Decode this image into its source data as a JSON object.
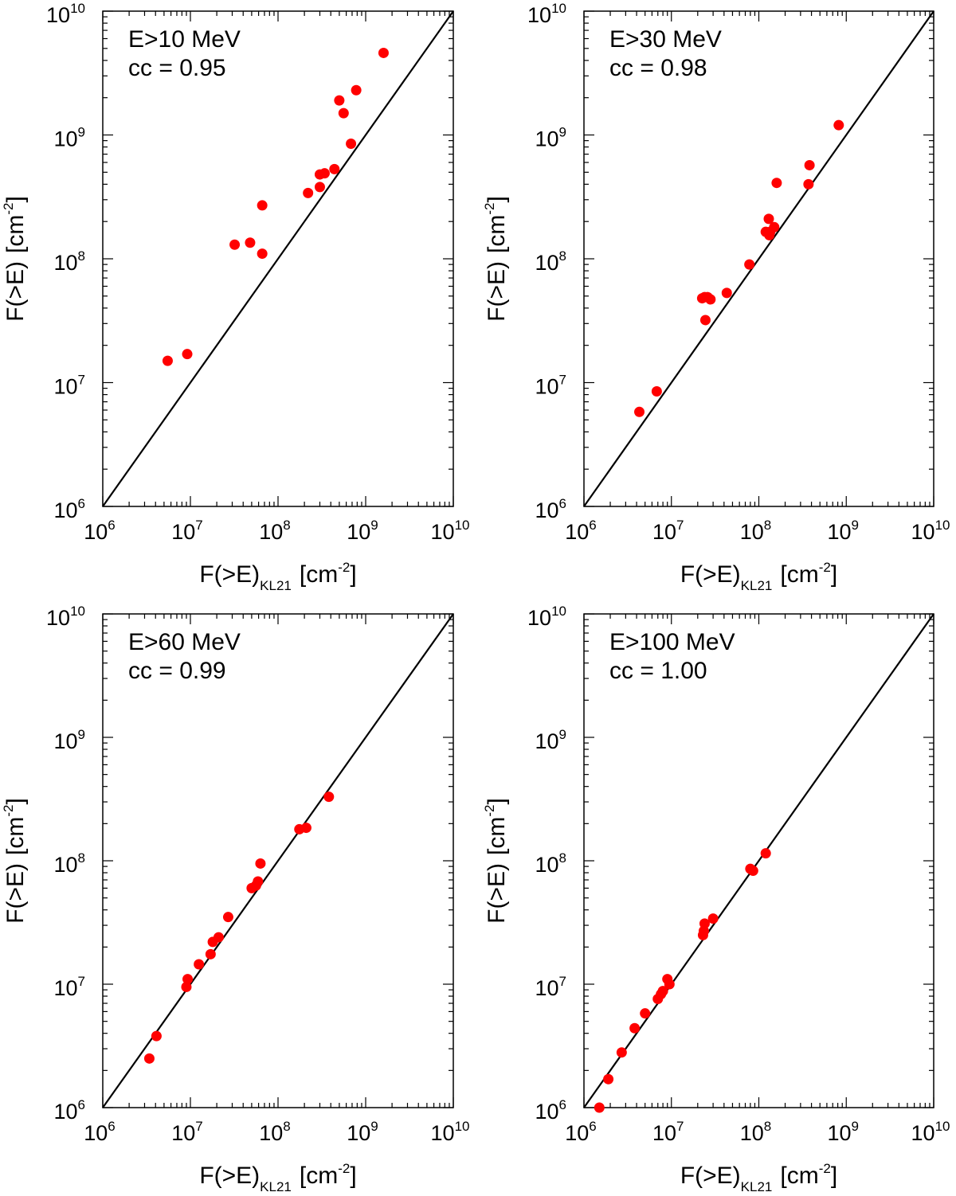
{
  "chart_data": [
    {
      "type": "scatter",
      "scale": "log-log",
      "annotation": "E>10 MeV",
      "cc_label": "cc = 0.95",
      "xlabel": {
        "main": "F(>E)",
        "subscript": "KL21",
        "unit": "[cm",
        "unit_exp": "-2",
        "unit_close": "]"
      },
      "ylabel": {
        "main": "F(>E)",
        "unit": "[cm",
        "unit_exp": "-2",
        "unit_close": "]"
      },
      "xlim": [
        1000000.0,
        10000000000.0
      ],
      "ylim": [
        1000000.0,
        10000000000.0
      ],
      "tick_base": "10",
      "tick_exponents": [
        "6",
        "7",
        "8",
        "9",
        "10"
      ],
      "reference_line": "y = x",
      "marker_color": "#ff0000",
      "x": [
        5500000.0,
        9200000.0,
        32000000.0,
        48000000.0,
        66000000.0,
        66000000.0,
        220000000.0,
        300000000.0,
        300000000.0,
        340000000.0,
        440000000.0,
        500000000.0,
        560000000.0,
        680000000.0,
        780000000.0,
        1600000000.0
      ],
      "y": [
        15000000.0,
        17000000.0,
        130000000.0,
        135000000.0,
        110000000.0,
        270000000.0,
        340000000.0,
        380000000.0,
        480000000.0,
        490000000.0,
        530000000.0,
        1900000000.0,
        1500000000.0,
        850000000.0,
        2300000000.0,
        4600000000.0
      ]
    },
    {
      "type": "scatter",
      "scale": "log-log",
      "annotation": "E>30 MeV",
      "cc_label": "cc = 0.98",
      "xlabel": {
        "main": "F(>E)",
        "subscript": "KL21",
        "unit": "[cm",
        "unit_exp": "-2",
        "unit_close": "]"
      },
      "ylabel": {
        "main": "F(>E)",
        "unit": "[cm",
        "unit_exp": "-2",
        "unit_close": "]"
      },
      "xlim": [
        1000000.0,
        10000000000.0
      ],
      "ylim": [
        1000000.0,
        10000000000.0
      ],
      "tick_base": "10",
      "tick_exponents": [
        "6",
        "7",
        "8",
        "9",
        "10"
      ],
      "reference_line": "y = x",
      "marker_color": "#ff0000",
      "x": [
        4300000.0,
        6800000.0,
        22500000.0,
        24000000.0,
        24500000.0,
        26000000.0,
        28000000.0,
        43000000.0,
        78000000.0,
        120000000.0,
        130000000.0,
        132000000.0,
        135000000.0,
        150000000.0,
        160000000.0,
        370000000.0,
        380000000.0,
        820000000.0
      ],
      "y": [
        5800000.0,
        8500000.0,
        48000000.0,
        49000000.0,
        32000000.0,
        49000000.0,
        47000000.0,
        53000000.0,
        90000000.0,
        165000000.0,
        210000000.0,
        155000000.0,
        165000000.0,
        180000000.0,
        410000000.0,
        400000000.0,
        570000000.0,
        1200000000.0
      ]
    },
    {
      "type": "scatter",
      "scale": "log-log",
      "annotation": "E>60 MeV",
      "cc_label": "cc = 0.99",
      "xlabel": {
        "main": "F(>E)",
        "subscript": "KL21",
        "unit": "[cm",
        "unit_exp": "-2",
        "unit_close": "]"
      },
      "ylabel": {
        "main": "F(>E)",
        "unit": "[cm",
        "unit_exp": "-2",
        "unit_close": "]"
      },
      "xlim": [
        1000000.0,
        10000000000.0
      ],
      "ylim": [
        1000000.0,
        10000000000.0
      ],
      "tick_base": "10",
      "tick_exponents": [
        "6",
        "7",
        "8",
        "9",
        "10"
      ],
      "reference_line": "y = x",
      "marker_color": "#ff0000",
      "x": [
        3400000.0,
        4100000.0,
        9000000.0,
        9300000.0,
        12500000.0,
        17000000.0,
        18000000.0,
        21000000.0,
        27000000.0,
        50000000.0,
        56000000.0,
        59000000.0,
        63000000.0,
        175000000.0,
        210000000.0,
        380000000.0
      ],
      "y": [
        2500000.0,
        3800000.0,
        9500000.0,
        11000000.0,
        14500000.0,
        17500000.0,
        22000000.0,
        24000000.0,
        35000000.0,
        60000000.0,
        63000000.0,
        68000000.0,
        95000000.0,
        180000000.0,
        185000000.0,
        330000000.0
      ]
    },
    {
      "type": "scatter",
      "scale": "log-log",
      "annotation": "E>100 MeV",
      "cc_label": "cc = 1.00",
      "xlabel": {
        "main": "F(>E)",
        "subscript": "KL21",
        "unit": "[cm",
        "unit_exp": "-2",
        "unit_close": "]"
      },
      "ylabel": {
        "main": "F(>E)",
        "unit": "[cm",
        "unit_exp": "-2",
        "unit_close": "]"
      },
      "xlim": [
        1000000.0,
        10000000000.0
      ],
      "ylim": [
        1000000.0,
        10000000000.0
      ],
      "tick_base": "10",
      "tick_exponents": [
        "6",
        "7",
        "8",
        "9",
        "10"
      ],
      "reference_line": "y = x",
      "marker_color": "#ff0000",
      "x": [
        1500000.0,
        1900000.0,
        2700000.0,
        3800000.0,
        5000000.0,
        7000000.0,
        7600000.0,
        8000000.0,
        9000000.0,
        9500000.0,
        23000000.0,
        23500000.0,
        24000000.0,
        30000000.0,
        80000000.0,
        86000000.0,
        120000000.0
      ],
      "y": [
        1000000.0,
        1700000.0,
        2800000.0,
        4400000.0,
        5800000.0,
        7600000.0,
        8300000.0,
        8800000.0,
        11000000.0,
        10000000.0,
        25000000.0,
        27000000.0,
        31000000.0,
        34000000.0,
        86000000.0,
        83000000.0,
        115000000.0
      ]
    }
  ]
}
